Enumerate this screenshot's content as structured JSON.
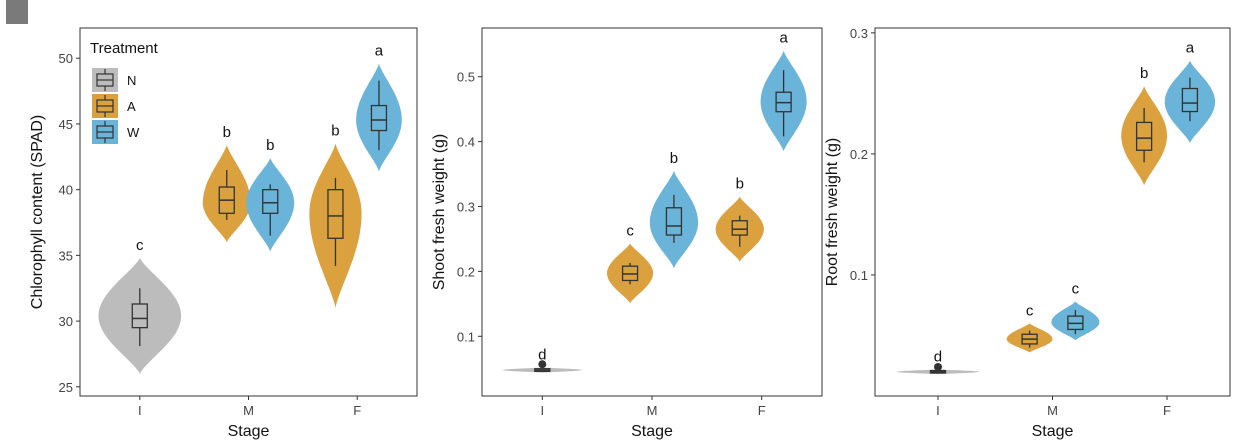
{
  "colors": {
    "N": "#bcbcbc",
    "A": "#dba13f",
    "W": "#6ab4d9"
  },
  "legend": {
    "title": "Treatment",
    "items": [
      {
        "key": "N",
        "label": "N"
      },
      {
        "key": "A",
        "label": "A"
      },
      {
        "key": "W",
        "label": "W"
      }
    ]
  },
  "chart_data": [
    {
      "type": "violin",
      "xlabel": "Stage",
      "ylabel": "Chlorophyll content (SPAD)",
      "categories": [
        "I",
        "M",
        "F"
      ],
      "ylim": [
        24.3,
        52.3
      ],
      "yticks": [
        25,
        30,
        35,
        40,
        45,
        50
      ],
      "ytick_labels": [
        "25",
        "30",
        "35",
        "40",
        "45",
        "50"
      ],
      "legend_position": "top-left",
      "groups": [
        {
          "category": "I",
          "treatment": "N",
          "xpos": 1.0,
          "letter": "c",
          "min": 26.0,
          "max": 34.8,
          "mode": 30.4,
          "halfwidth": 0.38,
          "box": [
            29.5,
            30.2,
            31.3
          ],
          "whiskers": [
            28.1,
            32.5
          ]
        },
        {
          "category": "M",
          "treatment": "A",
          "xpos": 1.8,
          "letter": "b",
          "min": 36.0,
          "max": 43.4,
          "mode": 39.0,
          "halfwidth": 0.22,
          "box": [
            38.2,
            39.2,
            40.2
          ],
          "whiskers": [
            37.7,
            41.5
          ]
        },
        {
          "category": "M",
          "treatment": "W",
          "xpos": 2.2,
          "letter": "b",
          "min": 35.3,
          "max": 42.4,
          "mode": 39.0,
          "halfwidth": 0.22,
          "box": [
            38.2,
            39.0,
            40.0
          ],
          "whiskers": [
            36.5,
            40.4
          ]
        },
        {
          "category": "F",
          "treatment": "A",
          "xpos": 2.8,
          "letter": "b",
          "min": 31.0,
          "max": 43.5,
          "mode": 38.2,
          "halfwidth": 0.24,
          "box": [
            36.3,
            38.0,
            40.0
          ],
          "whiskers": [
            34.2,
            40.9
          ]
        },
        {
          "category": "F",
          "treatment": "W",
          "xpos": 3.2,
          "letter": "a",
          "min": 41.4,
          "max": 49.6,
          "mode": 45.3,
          "halfwidth": 0.21,
          "box": [
            44.5,
            45.3,
            46.4
          ],
          "whiskers": [
            43.0,
            48.3
          ]
        }
      ]
    },
    {
      "type": "violin",
      "xlabel": "Stage",
      "ylabel": "Shoot fresh weight (g)",
      "categories": [
        "I",
        "M",
        "F"
      ],
      "ylim": [
        0.008,
        0.575
      ],
      "yticks": [
        0.1,
        0.2,
        0.3,
        0.4,
        0.5
      ],
      "ytick_labels": [
        "0.1",
        "0.2",
        "0.3",
        "0.4",
        "0.5"
      ],
      "groups": [
        {
          "category": "I",
          "treatment": "N",
          "xpos": 1.0,
          "letter": "d",
          "min": 0.044,
          "max": 0.052,
          "mode": 0.048,
          "halfwidth": 0.36,
          "box": [
            0.046,
            0.048,
            0.05
          ],
          "whiskers": [
            0.046,
            0.05
          ],
          "outlier": 0.057
        },
        {
          "category": "M",
          "treatment": "A",
          "xpos": 1.8,
          "letter": "c",
          "min": 0.151,
          "max": 0.243,
          "mode": 0.197,
          "halfwidth": 0.21,
          "box": [
            0.186,
            0.196,
            0.208
          ],
          "whiskers": [
            0.18,
            0.213
          ]
        },
        {
          "category": "M",
          "treatment": "W",
          "xpos": 2.2,
          "letter": "b",
          "min": 0.205,
          "max": 0.355,
          "mode": 0.275,
          "halfwidth": 0.22,
          "box": [
            0.256,
            0.27,
            0.298
          ],
          "whiskers": [
            0.244,
            0.318
          ]
        },
        {
          "category": "F",
          "treatment": "A",
          "xpos": 2.8,
          "letter": "b",
          "min": 0.215,
          "max": 0.315,
          "mode": 0.265,
          "halfwidth": 0.22,
          "box": [
            0.256,
            0.265,
            0.278
          ],
          "whiskers": [
            0.238,
            0.286
          ]
        },
        {
          "category": "F",
          "treatment": "W",
          "xpos": 3.2,
          "letter": "a",
          "min": 0.385,
          "max": 0.54,
          "mode": 0.462,
          "halfwidth": 0.21,
          "box": [
            0.446,
            0.46,
            0.476
          ],
          "whiskers": [
            0.408,
            0.51
          ]
        }
      ]
    },
    {
      "type": "violin",
      "xlabel": "Stage",
      "ylabel": "Root fresh weight (g)",
      "categories": [
        "I",
        "M",
        "F"
      ],
      "ylim": [
        0.0,
        0.304
      ],
      "yticks": [
        0.1,
        0.2,
        0.3
      ],
      "ytick_labels": [
        "0.1",
        "0.2",
        "0.3"
      ],
      "groups": [
        {
          "category": "I",
          "treatment": "N",
          "xpos": 1.0,
          "letter": "d",
          "min": 0.018,
          "max": 0.022,
          "mode": 0.02,
          "halfwidth": 0.36,
          "box": [
            0.019,
            0.02,
            0.021
          ],
          "whiskers": [
            0.019,
            0.021
          ],
          "outlier": 0.024
        },
        {
          "category": "M",
          "treatment": "A",
          "xpos": 1.8,
          "letter": "c",
          "min": 0.036,
          "max": 0.06,
          "mode": 0.047,
          "halfwidth": 0.2,
          "box": [
            0.043,
            0.047,
            0.051
          ],
          "whiskers": [
            0.04,
            0.054
          ]
        },
        {
          "category": "M",
          "treatment": "W",
          "xpos": 2.2,
          "letter": "c",
          "min": 0.046,
          "max": 0.078,
          "mode": 0.061,
          "halfwidth": 0.21,
          "box": [
            0.055,
            0.06,
            0.066
          ],
          "whiskers": [
            0.051,
            0.071
          ]
        },
        {
          "category": "F",
          "treatment": "A",
          "xpos": 2.8,
          "letter": "b",
          "min": 0.174,
          "max": 0.256,
          "mode": 0.215,
          "halfwidth": 0.2,
          "box": [
            0.203,
            0.213,
            0.226
          ],
          "whiskers": [
            0.193,
            0.238
          ]
        },
        {
          "category": "F",
          "treatment": "W",
          "xpos": 3.2,
          "letter": "a",
          "min": 0.209,
          "max": 0.277,
          "mode": 0.243,
          "halfwidth": 0.22,
          "box": [
            0.235,
            0.242,
            0.254
          ],
          "whiskers": [
            0.227,
            0.263
          ]
        }
      ]
    }
  ]
}
